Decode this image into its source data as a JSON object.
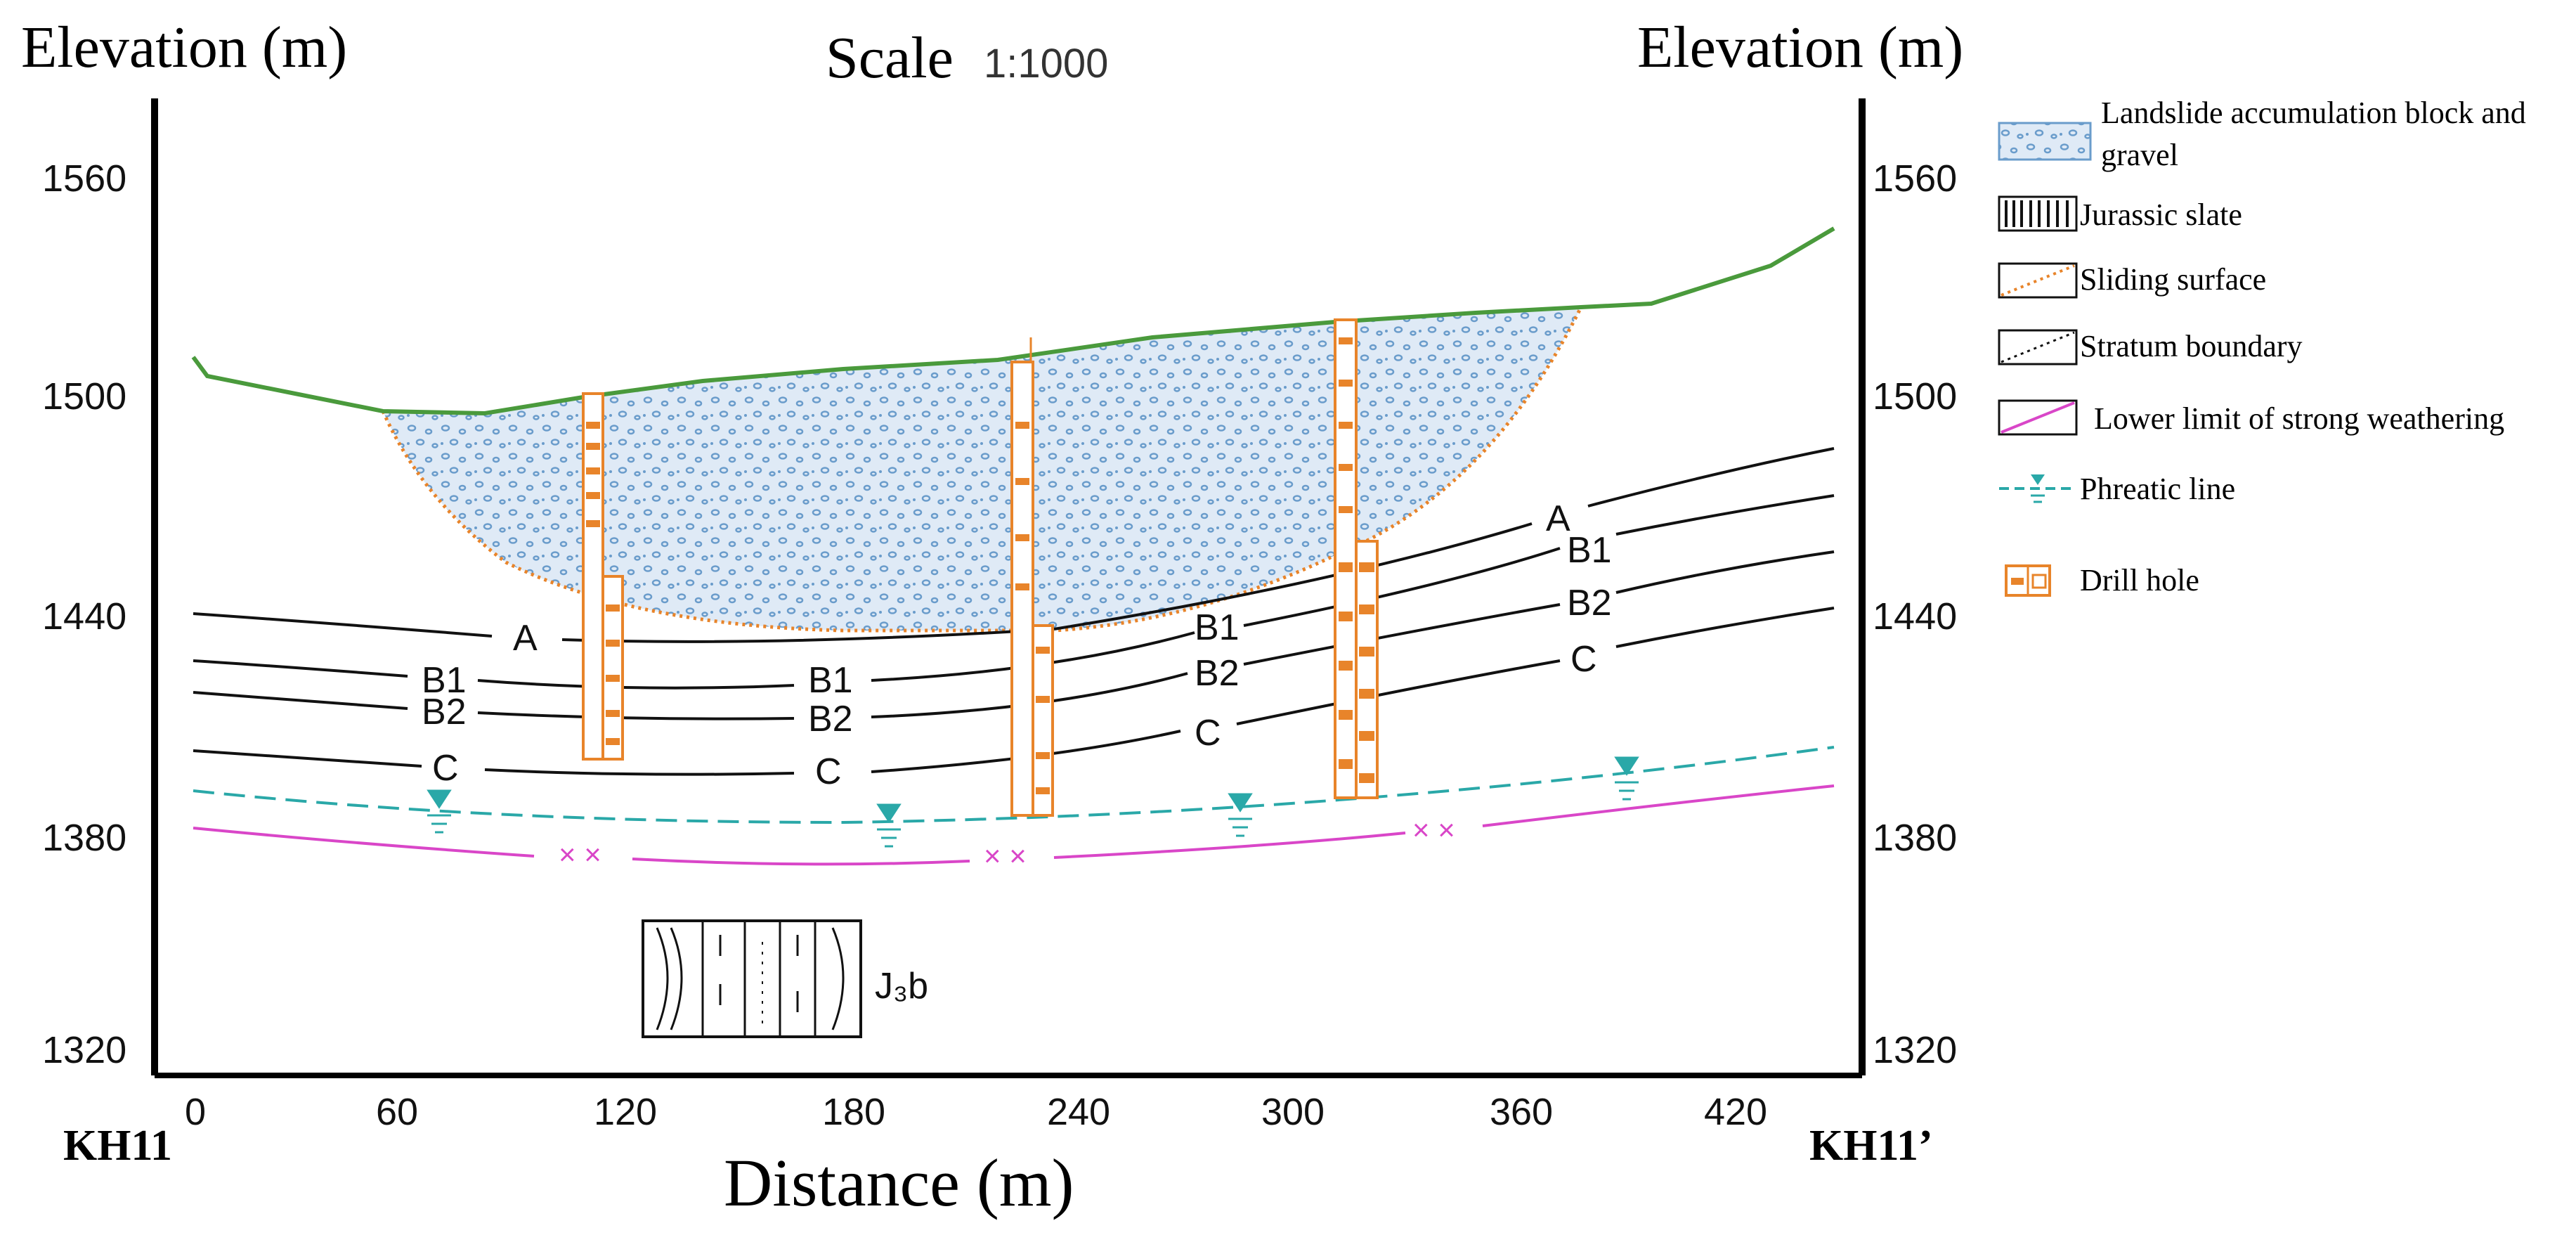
{
  "title": {
    "scale_word": "Scale",
    "scale_ratio": "1:1000"
  },
  "axes": {
    "left_label": "Elevation (m)",
    "right_label": "Elevation (m)",
    "x_label": "Distance (m)",
    "y_ticks": [
      "1560",
      "1500",
      "1440",
      "1380",
      "1320"
    ],
    "x_ticks": [
      "0",
      "60",
      "120",
      "180",
      "240",
      "300",
      "360",
      "420"
    ],
    "left_end_label": "KH11",
    "right_end_label": "KH11’"
  },
  "strata_labels": {
    "A": "A",
    "B1": "B1",
    "B2": "B2",
    "C": "C"
  },
  "formation_label": "J₃b",
  "legend": {
    "items": [
      {
        "key": "landslide",
        "label_line1": "Landslide accumulation block and",
        "label_line2": "gravel"
      },
      {
        "key": "slate",
        "label_line1": "Jurassic slate"
      },
      {
        "key": "sliding",
        "label_line1": "Sliding surface"
      },
      {
        "key": "stratum",
        "label_line1": "Stratum boundary"
      },
      {
        "key": "weathering",
        "label_line1": "Lower limit of strong weathering"
      },
      {
        "key": "phreatic",
        "label_line1": "Phreatic line"
      },
      {
        "key": "drill",
        "label_line1": "Drill hole"
      }
    ]
  },
  "colors": {
    "ground_surface": "#4a9a3c",
    "sliding_surface": "#e8842a",
    "landslide_fill": "#dfeaf6",
    "landslide_dots": "#6a9ccb",
    "stratum": "#111111",
    "weathering": "#d946c8",
    "phreatic": "#2aa8a8",
    "drill": "#e8842a"
  }
}
